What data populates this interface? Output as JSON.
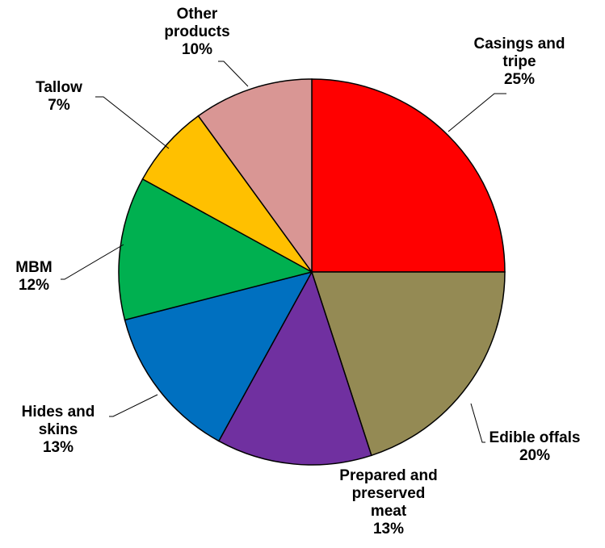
{
  "chart_data": {
    "type": "pie",
    "title": "",
    "start_angle_deg": 0,
    "direction": "clockwise",
    "slices": [
      {
        "label_lines": [
          "Casings and",
          "tripe"
        ],
        "pct": "25%",
        "value": 25,
        "color": "#ff0000"
      },
      {
        "label_lines": [
          "Edible offals"
        ],
        "pct": "20%",
        "value": 20,
        "color": "#948a54"
      },
      {
        "label_lines": [
          "Prepared and",
          "preserved",
          "meat"
        ],
        "pct": "13%",
        "value": 13,
        "color": "#7030a0"
      },
      {
        "label_lines": [
          "Hides and",
          "skins"
        ],
        "pct": "13%",
        "value": 13,
        "color": "#0070c0"
      },
      {
        "label_lines": [
          "MBM"
        ],
        "pct": "12%",
        "value": 12,
        "color": "#00b050"
      },
      {
        "label_lines": [
          "Tallow"
        ],
        "pct": "7%",
        "value": 7,
        "color": "#ffc000"
      },
      {
        "label_lines": [
          "Other",
          "products"
        ],
        "pct": "10%",
        "value": 10,
        "color": "#d99694"
      }
    ]
  }
}
